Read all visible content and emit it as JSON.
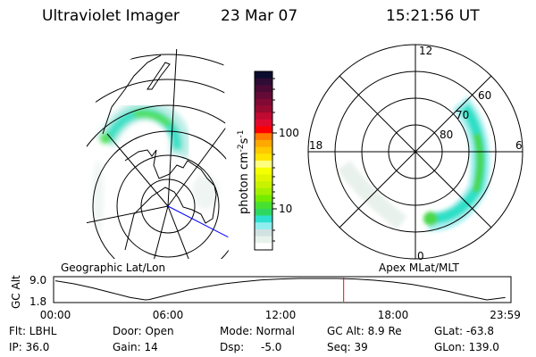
{
  "header": {
    "instrument": "Ultraviolet Imager",
    "date": "23 Mar 07",
    "time": "15:21:56 UT"
  },
  "geo_map": {
    "label": "Geographic Lat/Lon"
  },
  "polar_map": {
    "label": "Apex MLat/MLT",
    "mlt_labels": {
      "top": "12",
      "bottom": "0",
      "left": "18",
      "right": "6"
    },
    "lat_labels": [
      "80",
      "70",
      "60"
    ]
  },
  "colorbar": {
    "unit_label": "photon cm",
    "unit_exp1": "-2",
    "unit_s": "s",
    "unit_exp2": "-1",
    "tick_labels": [
      "100",
      "10"
    ],
    "colors": [
      "#0c0c2e",
      "#2e0c34",
      "#4a0a34",
      "#640a36",
      "#800a34",
      "#990a30",
      "#c00a32",
      "#e00a30",
      "#ff0000",
      "#ff7a00",
      "#ffa800",
      "#ffc800",
      "#ffe400",
      "#ffff80",
      "#f4ff00",
      "#e2f500",
      "#c8f200",
      "#a4f000",
      "#74ec00",
      "#48e030",
      "#2ed860",
      "#2ee0d0",
      "#90eef0",
      "#d2e2e2",
      "#e8f2ec",
      "#ffffff"
    ]
  },
  "chart_data": {
    "type": "line",
    "title": "",
    "ylabel": "GC Alt",
    "xlabel": "",
    "ytick_labels": [
      "9.0",
      "1.8"
    ],
    "xtick_labels": [
      "00:00",
      "06:00",
      "12:00",
      "18:00",
      "23:59"
    ],
    "ylim": [
      1.8,
      9.0
    ],
    "xlim_hours": [
      0,
      23.98
    ],
    "x_hours": [
      0,
      1,
      2,
      3,
      4,
      4.8,
      5,
      6,
      7,
      8,
      9,
      10,
      11,
      12,
      13,
      14,
      15,
      16,
      17,
      18,
      19,
      20,
      21,
      22,
      23,
      23.98
    ],
    "y": [
      8.2,
      7.2,
      5.8,
      4.2,
      2.6,
      1.8,
      1.9,
      3.5,
      5.0,
      6.2,
      7.2,
      7.9,
      8.5,
      8.8,
      9.0,
      9.0,
      9.0,
      8.8,
      8.4,
      7.8,
      7.0,
      5.9,
      4.6,
      3.1,
      1.8,
      2.6
    ],
    "current_time_hours": 15.366,
    "current_marker_color": "#ff0000"
  },
  "status": {
    "filter": "Flt: LBHL",
    "ip": "IP: 36.0",
    "door": "Door: Open",
    "gain": "Gain: 14",
    "mode": "Mode: Normal",
    "dsp_label": "Dsp:",
    "dsp_value": "-5.0",
    "gc_alt": "GC Alt: 8.9 Re",
    "seq": "Seq: 39",
    "glat": "GLat: -63.8",
    "glon": "GLon: 139.0"
  }
}
